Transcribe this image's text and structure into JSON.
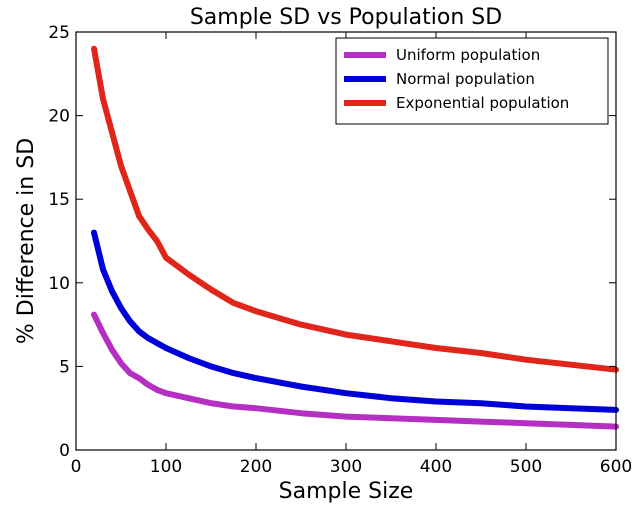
{
  "chart_data": {
    "type": "line",
    "title": "Sample SD vs Population SD",
    "xlabel": "Sample Size",
    "ylabel": "% Difference in SD",
    "xlim": [
      0,
      600
    ],
    "ylim": [
      0,
      25
    ],
    "xticks": [
      0,
      100,
      200,
      300,
      400,
      500,
      600
    ],
    "yticks": [
      0,
      5,
      10,
      15,
      20,
      25
    ],
    "grid": false,
    "legend_position": "top-right",
    "series": [
      {
        "name": "Uniform population",
        "color": "#b52fc2",
        "x": [
          20,
          30,
          40,
          50,
          60,
          70,
          80,
          90,
          100,
          125,
          150,
          175,
          200,
          250,
          300,
          350,
          400,
          450,
          500,
          550,
          600
        ],
        "y": [
          8.1,
          7.0,
          6.0,
          5.2,
          4.6,
          4.3,
          3.9,
          3.6,
          3.4,
          3.1,
          2.8,
          2.6,
          2.5,
          2.2,
          2.0,
          1.9,
          1.8,
          1.7,
          1.6,
          1.5,
          1.4
        ]
      },
      {
        "name": "Normal population",
        "color": "#0000d9",
        "x": [
          20,
          30,
          40,
          50,
          60,
          70,
          80,
          90,
          100,
          125,
          150,
          175,
          200,
          250,
          300,
          350,
          400,
          450,
          500,
          550,
          600
        ],
        "y": [
          13.0,
          10.8,
          9.5,
          8.5,
          7.7,
          7.1,
          6.7,
          6.4,
          6.1,
          5.5,
          5.0,
          4.6,
          4.3,
          3.8,
          3.4,
          3.1,
          2.9,
          2.8,
          2.6,
          2.5,
          2.4
        ]
      },
      {
        "name": "Exponential population",
        "color": "#e0251b",
        "x": [
          20,
          30,
          40,
          50,
          60,
          70,
          80,
          90,
          100,
          125,
          150,
          175,
          200,
          250,
          300,
          350,
          400,
          450,
          500,
          550,
          600
        ],
        "y": [
          24.0,
          21.0,
          19.0,
          17.0,
          15.5,
          14.0,
          13.2,
          12.5,
          11.5,
          10.5,
          9.6,
          8.8,
          8.3,
          7.5,
          6.9,
          6.5,
          6.1,
          5.8,
          5.4,
          5.1,
          4.8
        ]
      }
    ]
  }
}
